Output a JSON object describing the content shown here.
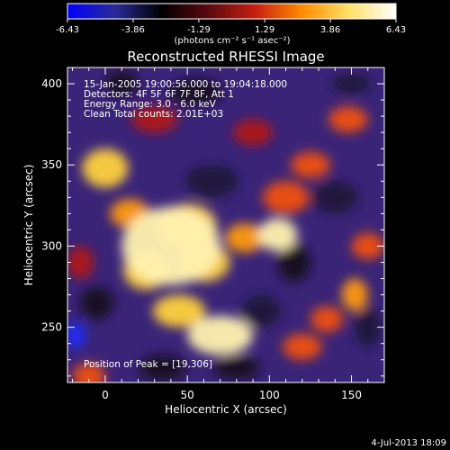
{
  "chart_data": {
    "type": "heatmap",
    "title": "Reconstructed RHESSI Image",
    "xlabel": "Heliocentric X (arcsec)",
    "ylabel": "Heliocentric Y (arcsec)",
    "xlim": [
      -23,
      170
    ],
    "ylim": [
      216,
      410
    ],
    "x_ticks": [
      0,
      50,
      100,
      150
    ],
    "x_tick_labels": [
      "0",
      "50",
      "100",
      "150"
    ],
    "y_ticks": [
      250,
      300,
      350,
      400
    ],
    "y_tick_labels": [
      "250",
      "300",
      "350",
      "400"
    ],
    "colorbar": {
      "min": -6.43,
      "max": 6.43,
      "ticks": [
        -6.43,
        -3.86,
        -1.29,
        1.29,
        3.86,
        6.43
      ],
      "tick_labels": [
        "-6.43",
        "-3.86",
        "-1.29",
        "1.29",
        "3.86",
        "6.43"
      ],
      "units_label": "(photons cm⁻² s⁻¹ asec⁻²)",
      "colormap_stops": [
        "#0000ff",
        "#2a2a9a",
        "#000000",
        "#5a0a10",
        "#c81e10",
        "#ff8c00",
        "#ffe066",
        "#ffffff"
      ]
    },
    "annotations": [
      "15-Jan-2005 19:00:56.000 to 19:04:18.000",
      "Detectors: 4F 5F 6F 7F 8F, Att 1",
      "Energy Range: 3.0 - 6.0 keV",
      "Clean    Total counts: 2.01E+03"
    ],
    "peak_label": "Position of Peak = [19,306]",
    "peak_position": [
      19,
      306
    ],
    "blobs": [
      {
        "x": 40,
        "y": 300,
        "value": 6.0,
        "rx": 30,
        "ry": 24
      },
      {
        "x": 50,
        "y": 312,
        "value": 5.4,
        "rx": 18,
        "ry": 14
      },
      {
        "x": 25,
        "y": 285,
        "value": 5.2,
        "rx": 14,
        "ry": 12
      },
      {
        "x": 60,
        "y": 290,
        "value": 4.8,
        "rx": 16,
        "ry": 12
      },
      {
        "x": 70,
        "y": 245,
        "value": 6.4,
        "rx": 20,
        "ry": 12
      },
      {
        "x": 45,
        "y": 260,
        "value": 5.0,
        "rx": 16,
        "ry": 10
      },
      {
        "x": 105,
        "y": 307,
        "value": 6.3,
        "rx": 12,
        "ry": 10
      },
      {
        "x": 85,
        "y": 305,
        "value": 4.0,
        "rx": 12,
        "ry": 9
      },
      {
        "x": 0,
        "y": 348,
        "value": 4.6,
        "rx": 14,
        "ry": 12
      },
      {
        "x": 15,
        "y": 320,
        "value": 3.8,
        "rx": 12,
        "ry": 9
      },
      {
        "x": 110,
        "y": 330,
        "value": 3.5,
        "rx": 14,
        "ry": 10
      },
      {
        "x": 125,
        "y": 350,
        "value": 3.2,
        "rx": 12,
        "ry": 8
      },
      {
        "x": 148,
        "y": 378,
        "value": 3.5,
        "rx": 12,
        "ry": 8
      },
      {
        "x": 160,
        "y": 300,
        "value": 3.0,
        "rx": 10,
        "ry": 8
      },
      {
        "x": 152,
        "y": 270,
        "value": 3.6,
        "rx": 8,
        "ry": 10
      },
      {
        "x": 120,
        "y": 238,
        "value": 3.0,
        "rx": 12,
        "ry": 8
      },
      {
        "x": 135,
        "y": 255,
        "value": 2.6,
        "rx": 10,
        "ry": 8
      },
      {
        "x": -15,
        "y": 290,
        "value": 2.4,
        "rx": 8,
        "ry": 10
      },
      {
        "x": -10,
        "y": 220,
        "value": 2.6,
        "rx": 10,
        "ry": 8
      },
      {
        "x": 90,
        "y": 370,
        "value": 2.2,
        "rx": 12,
        "ry": 8
      },
      {
        "x": 30,
        "y": 378,
        "value": 2.0,
        "rx": 14,
        "ry": 8
      },
      {
        "x": -18,
        "y": 245,
        "value": -6.0,
        "rx": 6,
        "ry": 8
      },
      {
        "x": 150,
        "y": 400,
        "value": -3.5,
        "rx": 12,
        "ry": 6
      },
      {
        "x": 115,
        "y": 290,
        "value": -3.2,
        "rx": 10,
        "ry": 12
      },
      {
        "x": 140,
        "y": 330,
        "value": -3.8,
        "rx": 14,
        "ry": 10
      },
      {
        "x": 65,
        "y": 340,
        "value": -3.5,
        "rx": 16,
        "ry": 10
      },
      {
        "x": 95,
        "y": 260,
        "value": -3.4,
        "rx": 12,
        "ry": 10
      },
      {
        "x": -5,
        "y": 265,
        "value": -3.2,
        "rx": 10,
        "ry": 10
      },
      {
        "x": 55,
        "y": 395,
        "value": -3.0,
        "rx": 16,
        "ry": 8
      },
      {
        "x": 160,
        "y": 250,
        "value": -3.6,
        "rx": 8,
        "ry": 12
      },
      {
        "x": 10,
        "y": 400,
        "value": -2.6,
        "rx": 10,
        "ry": 8
      },
      {
        "x": 80,
        "y": 225,
        "value": -2.6,
        "rx": 14,
        "ry": 7
      },
      {
        "x": 35,
        "y": 225,
        "value": -2.2,
        "rx": 14,
        "ry": 8
      }
    ]
  },
  "footer": {
    "date_stamp": "4-Jul-2013 18:09"
  }
}
